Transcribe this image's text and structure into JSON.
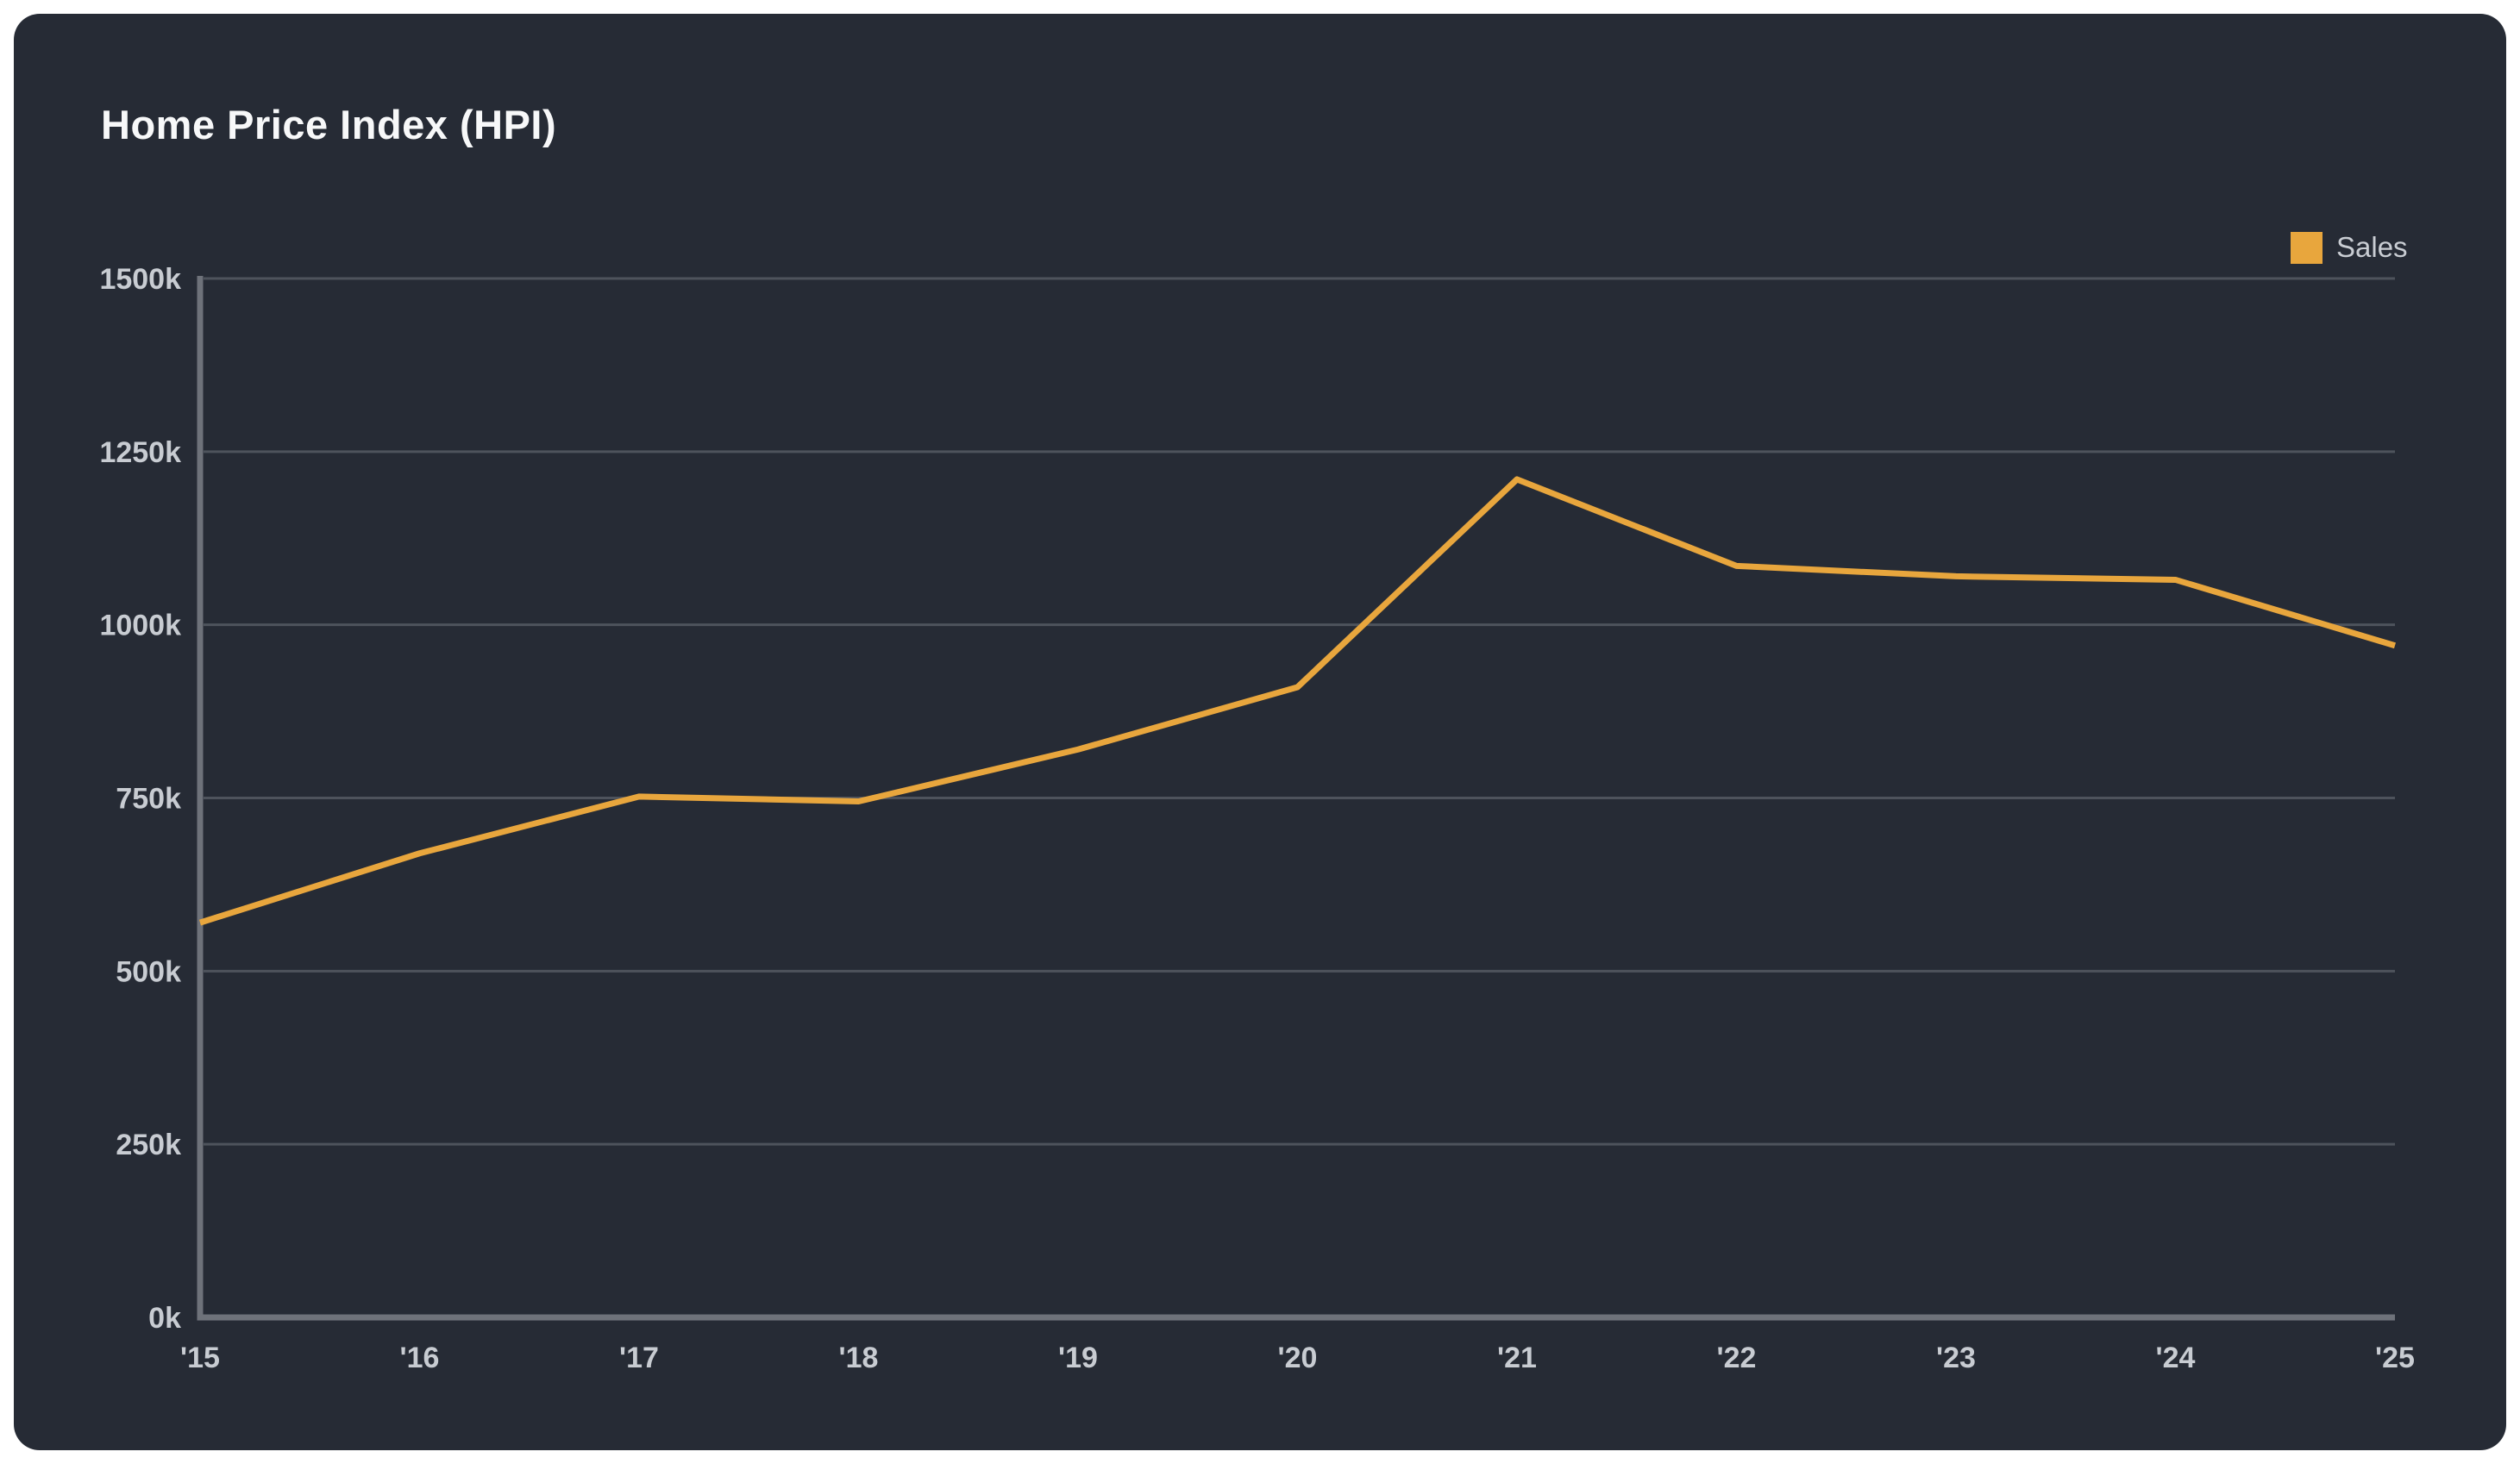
{
  "card": {
    "title": "Home Price Index (HPI)"
  },
  "legend": {
    "items": [
      {
        "label": "Sales",
        "swatch_color": "#E8A63D"
      }
    ],
    "position": "top-right"
  },
  "colors": {
    "page_background": "#FFFFFF",
    "card_background": "#262B35",
    "series_accent": "#E8A63D",
    "gridline": "#4E535C",
    "axis_line": "#6E727A",
    "tick_label": "#C8CCD2",
    "title_text": "#F7F8F9"
  },
  "chart_data": {
    "type": "line",
    "title": "Home Price Index (HPI)",
    "x": [
      2015,
      2016,
      2017,
      2018,
      2019,
      2020,
      2021,
      2022,
      2023,
      2024,
      2025
    ],
    "x_tick_labels": [
      "'15",
      "'16",
      "'17",
      "'18",
      "'19",
      "'20",
      "'21",
      "'22",
      "'23",
      "'24",
      "'25"
    ],
    "y_unit": "k",
    "ylim": [
      0,
      1500
    ],
    "y_ticks": [
      0,
      250,
      500,
      750,
      1000,
      1250,
      1500
    ],
    "y_tick_labels": [
      "0k",
      "250k",
      "500k",
      "750k",
      "1000k",
      "1250k",
      "1500k"
    ],
    "grid": true,
    "legend_position": "top-right",
    "series": [
      {
        "name": "Sales",
        "color": "#E8A63D",
        "values": [
          570,
          670,
          752,
          745,
          820,
          910,
          1210,
          1085,
          1070,
          1065,
          970
        ]
      }
    ]
  }
}
